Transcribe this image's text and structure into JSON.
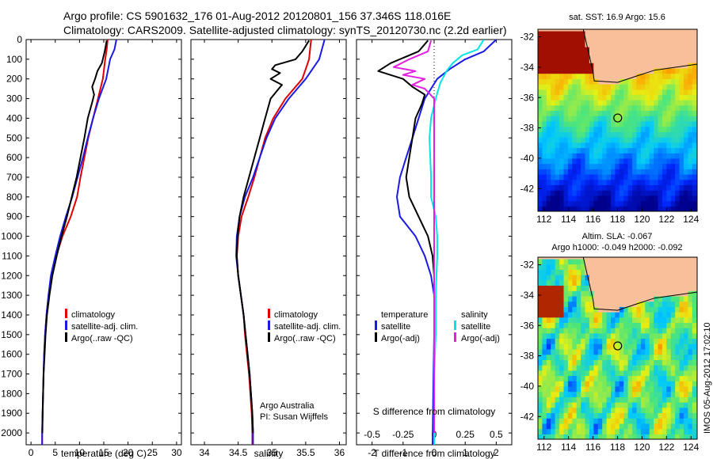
{
  "header": {
    "line1": "Argo profile: CS 5901632_176 01-Aug-2012 20120801_156 37.346S 118.016E",
    "line2": "Climatology: CARS2009. Satellite-adjusted climatology: synTS_20120730.nc (2.2d earlier)"
  },
  "colors": {
    "climatology": "#e00000",
    "satellite": "#1a1ae6",
    "argo": "#000000",
    "sat_salinity": "#00e5e5",
    "argo_salinity": "#e020e0",
    "land": "#f8c09a"
  },
  "panel_labels": {
    "temp_xlabel": "temperature (deg C)",
    "sal_xlabel": "salinity",
    "diff_xlabel_bottom": "T difference from climatology",
    "diff_xlabel_top": "S difference from climatology",
    "legend_climatology": "climatology",
    "legend_satellite_adj": "satellite-adj. clim.",
    "legend_argo": "Argo(..raw -QC)",
    "diff_legend_temperature": "temperature",
    "diff_legend_salinity": "salinity",
    "diff_legend_satellite": "satellite",
    "diff_legend_argo": "Argo(-adj)",
    "credit_line1": "Argo Australia",
    "credit_line2": "PI: Susan Wijffels",
    "sst_title": "sat. SST: 16.9 Argo: 15.6",
    "sla_title1": "Altim. SLA: -0.067",
    "sla_title2": "Argo h1000: -0.049 h2000: -0.092",
    "stamp": "IMOS 05-Aug-2012 17:02:10"
  },
  "chart_data": [
    {
      "type": "line",
      "panel": "temperature",
      "xlabel": "temperature (deg C)",
      "xlim": [
        -1,
        31
      ],
      "xticks": [
        0,
        5,
        10,
        15,
        20,
        25,
        30
      ],
      "ylim": [
        2060,
        0
      ],
      "yticks": [
        0,
        100,
        200,
        300,
        400,
        500,
        600,
        700,
        800,
        900,
        1000,
        1100,
        1200,
        1300,
        1400,
        1500,
        1600,
        1700,
        1800,
        1900,
        2000
      ],
      "series": [
        {
          "name": "climatology",
          "color": "#e00000",
          "points": [
            [
              15.8,
              0
            ],
            [
              15.6,
              50
            ],
            [
              15.3,
              100
            ],
            [
              14.8,
              200
            ],
            [
              13.8,
              300
            ],
            [
              12.8,
              400
            ],
            [
              11.8,
              500
            ],
            [
              11.0,
              600
            ],
            [
              10.2,
              700
            ],
            [
              9.5,
              800
            ],
            [
              8.2,
              900
            ],
            [
              6.5,
              1000
            ],
            [
              5.2,
              1100
            ],
            [
              4.2,
              1200
            ],
            [
              3.6,
              1300
            ],
            [
              3.2,
              1400
            ],
            [
              2.9,
              1500
            ],
            [
              2.7,
              1600
            ],
            [
              2.6,
              1700
            ],
            [
              2.5,
              1800
            ],
            [
              2.4,
              1900
            ],
            [
              2.3,
              2000
            ],
            [
              2.3,
              2060
            ]
          ]
        },
        {
          "name": "satellite-adj. clim.",
          "color": "#1a1ae6",
          "points": [
            [
              17.6,
              0
            ],
            [
              17.2,
              50
            ],
            [
              16.3,
              100
            ],
            [
              15.5,
              200
            ],
            [
              14.0,
              300
            ],
            [
              12.8,
              400
            ],
            [
              11.7,
              500
            ],
            [
              10.7,
              600
            ],
            [
              9.6,
              700
            ],
            [
              8.5,
              800
            ],
            [
              7.2,
              900
            ],
            [
              6.0,
              1000
            ],
            [
              5.0,
              1100
            ],
            [
              4.1,
              1200
            ],
            [
              3.6,
              1300
            ],
            [
              3.2,
              1400
            ],
            [
              2.9,
              1500
            ],
            [
              2.7,
              1600
            ],
            [
              2.6,
              1700
            ],
            [
              2.5,
              1800
            ],
            [
              2.4,
              1900
            ],
            [
              2.3,
              2000
            ],
            [
              2.3,
              2060
            ]
          ]
        },
        {
          "name": "Argo(..raw -QC)",
          "color": "#000000",
          "points": [
            [
              15.6,
              5
            ],
            [
              15.2,
              60
            ],
            [
              14.6,
              120
            ],
            [
              13.7,
              160
            ],
            [
              13.2,
              200
            ],
            [
              12.6,
              240
            ],
            [
              13.0,
              280
            ],
            [
              12.6,
              320
            ],
            [
              11.7,
              400
            ],
            [
              11.0,
              500
            ],
            [
              10.2,
              600
            ],
            [
              9.4,
              700
            ],
            [
              8.4,
              800
            ],
            [
              7.4,
              900
            ],
            [
              6.3,
              1000
            ],
            [
              5.3,
              1100
            ],
            [
              4.4,
              1200
            ],
            [
              3.8,
              1300
            ],
            [
              3.3,
              1400
            ],
            [
              3.0,
              1500
            ],
            [
              2.8,
              1600
            ],
            [
              2.6,
              1700
            ],
            [
              2.5,
              1800
            ],
            [
              2.4,
              1900
            ],
            [
              2.35,
              2000
            ]
          ]
        }
      ]
    },
    {
      "type": "line",
      "panel": "salinity",
      "xlabel": "salinity",
      "xlim": [
        33.8,
        36.1
      ],
      "xticks": [
        34,
        34.5,
        35,
        35.5,
        36
      ],
      "ylim": [
        2060,
        0
      ],
      "series": [
        {
          "name": "climatology",
          "color": "#e00000",
          "points": [
            [
              35.58,
              0
            ],
            [
              35.55,
              100
            ],
            [
              35.45,
              200
            ],
            [
              35.2,
              300
            ],
            [
              35.02,
              400
            ],
            [
              34.9,
              500
            ],
            [
              34.82,
              600
            ],
            [
              34.74,
              700
            ],
            [
              34.65,
              800
            ],
            [
              34.55,
              900
            ],
            [
              34.5,
              1000
            ],
            [
              34.48,
              1100
            ],
            [
              34.5,
              1200
            ],
            [
              34.54,
              1300
            ],
            [
              34.58,
              1400
            ],
            [
              34.6,
              1500
            ],
            [
              34.63,
              1600
            ],
            [
              34.66,
              1700
            ],
            [
              34.68,
              1800
            ],
            [
              34.7,
              1900
            ],
            [
              34.71,
              2000
            ],
            [
              34.71,
              2060
            ]
          ]
        },
        {
          "name": "satellite-adj. clim.",
          "color": "#1a1ae6",
          "points": [
            [
              35.78,
              0
            ],
            [
              35.7,
              100
            ],
            [
              35.5,
              200
            ],
            [
              35.25,
              300
            ],
            [
              35.05,
              400
            ],
            [
              34.92,
              500
            ],
            [
              34.82,
              600
            ],
            [
              34.72,
              700
            ],
            [
              34.6,
              800
            ],
            [
              34.52,
              900
            ],
            [
              34.48,
              1000
            ],
            [
              34.47,
              1100
            ],
            [
              34.5,
              1200
            ],
            [
              34.54,
              1300
            ],
            [
              34.58,
              1400
            ],
            [
              34.61,
              1500
            ],
            [
              34.64,
              1600
            ],
            [
              34.67,
              1700
            ],
            [
              34.69,
              1800
            ],
            [
              34.71,
              1900
            ],
            [
              34.72,
              2000
            ],
            [
              34.72,
              2060
            ]
          ]
        },
        {
          "name": "Argo(..raw -QC)",
          "color": "#000000",
          "points": [
            [
              35.55,
              5
            ],
            [
              35.45,
              60
            ],
            [
              35.35,
              100
            ],
            [
              35.05,
              130
            ],
            [
              35.0,
              150
            ],
            [
              35.12,
              170
            ],
            [
              34.98,
              200
            ],
            [
              35.15,
              230
            ],
            [
              35.1,
              250
            ],
            [
              34.98,
              300
            ],
            [
              34.9,
              400
            ],
            [
              34.82,
              500
            ],
            [
              34.74,
              600
            ],
            [
              34.66,
              700
            ],
            [
              34.58,
              800
            ],
            [
              34.52,
              900
            ],
            [
              34.49,
              1000
            ],
            [
              34.48,
              1100
            ],
            [
              34.5,
              1200
            ],
            [
              34.54,
              1300
            ],
            [
              34.58,
              1400
            ],
            [
              34.61,
              1500
            ],
            [
              34.64,
              1600
            ],
            [
              34.67,
              1700
            ],
            [
              34.69,
              1800
            ],
            [
              34.71,
              1900
            ],
            [
              34.72,
              2000
            ]
          ]
        }
      ]
    },
    {
      "type": "line",
      "panel": "difference",
      "xlabel": "T difference from climatology",
      "xlabel_top": "S difference from climatology",
      "xlim": [
        -2.5,
        2.5
      ],
      "xticks": [
        -2,
        -1,
        0,
        1,
        2
      ],
      "top_ticks": [
        "-0.5",
        "-0.25",
        "0",
        "0.25",
        "0.5"
      ],
      "ylim": [
        2060,
        0
      ],
      "series": [
        {
          "name": "temperature satellite",
          "color": "#1a1ae6",
          "points": [
            [
              2.0,
              0
            ],
            [
              1.6,
              60
            ],
            [
              1.0,
              100
            ],
            [
              0.5,
              150
            ],
            [
              0.1,
              200
            ],
            [
              -0.3,
              300
            ],
            [
              -0.5,
              400
            ],
            [
              -0.7,
              500
            ],
            [
              -0.9,
              600
            ],
            [
              -1.1,
              700
            ],
            [
              -1.2,
              800
            ],
            [
              -1.1,
              900
            ],
            [
              -0.6,
              1000
            ],
            [
              -0.3,
              1100
            ],
            [
              -0.1,
              1200
            ],
            [
              0,
              1300
            ],
            [
              0,
              1400
            ],
            [
              0,
              1500
            ],
            [
              -0.02,
              1700
            ],
            [
              -0.05,
              2060
            ]
          ]
        },
        {
          "name": "temperature Argo(-adj)",
          "color": "#000000",
          "points": [
            [
              -0.2,
              5
            ],
            [
              -0.5,
              60
            ],
            [
              -1.4,
              120
            ],
            [
              -1.8,
              160
            ],
            [
              -1.0,
              200
            ],
            [
              -0.7,
              240
            ],
            [
              -0.3,
              280
            ],
            [
              -0.4,
              330
            ],
            [
              -0.6,
              400
            ],
            [
              -0.7,
              500
            ],
            [
              -0.8,
              600
            ],
            [
              -0.9,
              700
            ],
            [
              -0.8,
              800
            ],
            [
              -0.5,
              900
            ],
            [
              -0.2,
              1000
            ],
            [
              -0.05,
              1100
            ],
            [
              0,
              1200
            ],
            [
              0,
              1400
            ],
            [
              0,
              1600
            ],
            [
              0,
              1800
            ],
            [
              0,
              2000
            ]
          ]
        },
        {
          "name": "salinity satellite",
          "color": "#00e5e5",
          "points": [
            [
              1.6,
              0
            ],
            [
              1.4,
              50
            ],
            [
              0.9,
              80
            ],
            [
              0.6,
              120
            ],
            [
              0.4,
              160
            ],
            [
              0.2,
              220
            ],
            [
              0.05,
              300
            ],
            [
              -0.1,
              400
            ],
            [
              -0.15,
              500
            ],
            [
              -0.1,
              700
            ],
            [
              -0.1,
              800
            ],
            [
              0.05,
              900
            ],
            [
              0.1,
              1000
            ],
            [
              0.1,
              1100
            ],
            [
              0.05,
              1300
            ],
            [
              0.05,
              1500
            ],
            [
              0,
              1700
            ],
            [
              0,
              2060
            ]
          ]
        },
        {
          "name": "salinity Argo(-adj)",
          "color": "#e020e0",
          "points": [
            [
              -0.1,
              5
            ],
            [
              -0.2,
              60
            ],
            [
              -0.8,
              100
            ],
            [
              -1.3,
              140
            ],
            [
              -0.6,
              160
            ],
            [
              -1.0,
              180
            ],
            [
              -0.3,
              200
            ],
            [
              -0.7,
              230
            ],
            [
              -0.3,
              250
            ],
            [
              0,
              300
            ],
            [
              0,
              400
            ],
            [
              0,
              500
            ],
            [
              0,
              600
            ],
            [
              0,
              700
            ],
            [
              0,
              1000
            ],
            [
              0,
              1200
            ],
            [
              0,
              1400
            ],
            [
              0,
              1600
            ],
            [
              0,
              1800
            ],
            [
              0,
              2000
            ]
          ]
        }
      ]
    },
    {
      "type": "heatmap",
      "panel": "map_sst",
      "title": "sat. SST: 16.9 Argo: 15.6",
      "xlim": [
        111.5,
        124.5
      ],
      "ylim": [
        -43.5,
        -31.5
      ],
      "xticks": [
        112,
        114,
        116,
        118,
        120,
        122,
        124
      ],
      "yticks": [
        -32,
        -34,
        -36,
        -38,
        -40,
        -42
      ],
      "argo_position": [
        118.016,
        -37.346
      ]
    },
    {
      "type": "heatmap",
      "panel": "map_sla",
      "title": "Altim. SLA: -0.067",
      "subtitle": "Argo h1000: -0.049 h2000: -0.092",
      "xlim": [
        111.5,
        124.5
      ],
      "ylim": [
        -43.5,
        -31.5
      ],
      "xticks": [
        112,
        114,
        116,
        118,
        120,
        122,
        124
      ],
      "yticks": [
        -32,
        -34,
        -36,
        -38,
        -40,
        -42
      ],
      "argo_position": [
        118.016,
        -37.346
      ]
    }
  ]
}
